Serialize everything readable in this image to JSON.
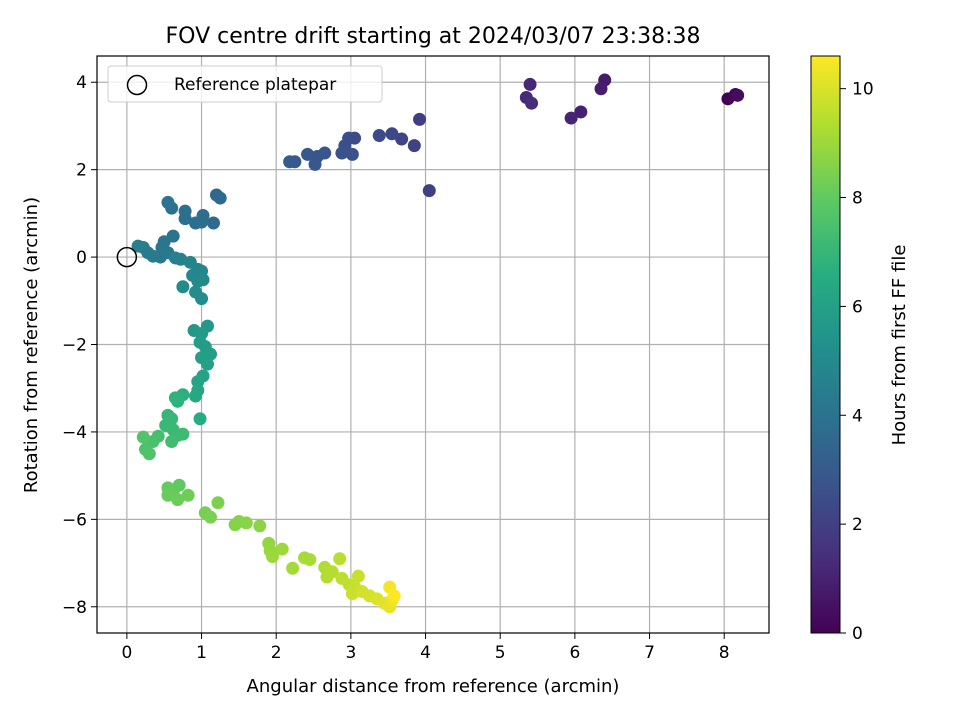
{
  "chart_data": {
    "type": "scatter",
    "title": "FOV centre drift starting at 2024/03/07 23:38:38",
    "xlabel": "Angular distance from reference (arcmin)",
    "ylabel": "Rotation from reference (arcmin)",
    "xlim": [
      -0.4,
      8.6
    ],
    "ylim": [
      -8.6,
      4.6
    ],
    "xticks": [
      0,
      1,
      2,
      3,
      4,
      5,
      6,
      7,
      8
    ],
    "yticks": [
      -8,
      -6,
      -4,
      -2,
      0,
      2,
      4
    ],
    "grid": true,
    "legend": {
      "position": "top-left",
      "entries": [
        {
          "label": "Reference platepar",
          "marker": "open-circle"
        }
      ]
    },
    "reference_point": {
      "x": 0.0,
      "y": 0.0
    },
    "colorbar": {
      "label": "Hours from first FF file",
      "colormap": "viridis",
      "range": [
        0,
        10.6
      ],
      "ticks": [
        0,
        2,
        4,
        6,
        8,
        10
      ]
    },
    "points": [
      {
        "x": 8.05,
        "y": 3.62,
        "c": 0.0
      },
      {
        "x": 8.15,
        "y": 3.72,
        "c": 0.15
      },
      {
        "x": 8.18,
        "y": 3.7,
        "c": 0.3
      },
      {
        "x": 6.4,
        "y": 4.05,
        "c": 0.8
      },
      {
        "x": 6.35,
        "y": 3.85,
        "c": 0.9
      },
      {
        "x": 6.08,
        "y": 3.32,
        "c": 1.0
      },
      {
        "x": 5.95,
        "y": 3.18,
        "c": 1.1
      },
      {
        "x": 5.4,
        "y": 3.95,
        "c": 1.2
      },
      {
        "x": 5.35,
        "y": 3.65,
        "c": 1.3
      },
      {
        "x": 5.42,
        "y": 3.52,
        "c": 1.35
      },
      {
        "x": 3.92,
        "y": 3.15,
        "c": 2.0
      },
      {
        "x": 4.05,
        "y": 1.52,
        "c": 2.05
      },
      {
        "x": 3.85,
        "y": 2.55,
        "c": 2.1
      },
      {
        "x": 3.68,
        "y": 2.7,
        "c": 2.2
      },
      {
        "x": 3.55,
        "y": 2.82,
        "c": 2.3
      },
      {
        "x": 3.38,
        "y": 2.78,
        "c": 2.4
      },
      {
        "x": 3.05,
        "y": 2.72,
        "c": 2.5
      },
      {
        "x": 2.97,
        "y": 2.72,
        "c": 2.55
      },
      {
        "x": 2.92,
        "y": 2.55,
        "c": 2.6
      },
      {
        "x": 3.02,
        "y": 2.35,
        "c": 2.65
      },
      {
        "x": 2.88,
        "y": 2.38,
        "c": 2.7
      },
      {
        "x": 2.65,
        "y": 2.38,
        "c": 2.8
      },
      {
        "x": 2.55,
        "y": 2.3,
        "c": 2.85
      },
      {
        "x": 2.52,
        "y": 2.12,
        "c": 2.9
      },
      {
        "x": 2.42,
        "y": 2.35,
        "c": 2.95
      },
      {
        "x": 2.25,
        "y": 2.18,
        "c": 3.0
      },
      {
        "x": 2.18,
        "y": 2.18,
        "c": 3.05
      },
      {
        "x": 1.2,
        "y": 1.42,
        "c": 3.6
      },
      {
        "x": 1.25,
        "y": 1.35,
        "c": 3.65
      },
      {
        "x": 1.16,
        "y": 0.78,
        "c": 3.7
      },
      {
        "x": 1.02,
        "y": 0.95,
        "c": 3.75
      },
      {
        "x": 1.0,
        "y": 0.8,
        "c": 3.8
      },
      {
        "x": 0.92,
        "y": 0.78,
        "c": 3.85
      },
      {
        "x": 0.78,
        "y": 0.88,
        "c": 3.9
      },
      {
        "x": 0.78,
        "y": 1.05,
        "c": 3.95
      },
      {
        "x": 0.6,
        "y": 1.12,
        "c": 4.0
      },
      {
        "x": 0.55,
        "y": 1.25,
        "c": 4.05
      },
      {
        "x": 0.62,
        "y": 0.48,
        "c": 4.1
      },
      {
        "x": 0.5,
        "y": 0.35,
        "c": 4.15
      },
      {
        "x": 0.47,
        "y": 0.22,
        "c": 4.2
      },
      {
        "x": 0.55,
        "y": 0.1,
        "c": 4.25
      },
      {
        "x": 0.45,
        "y": 0.0,
        "c": 4.3
      },
      {
        "x": 0.35,
        "y": 0.02,
        "c": 4.35
      },
      {
        "x": 0.28,
        "y": 0.1,
        "c": 4.4
      },
      {
        "x": 0.22,
        "y": 0.22,
        "c": 4.45
      },
      {
        "x": 0.15,
        "y": 0.25,
        "c": 4.5
      },
      {
        "x": 0.65,
        "y": -0.02,
        "c": 4.6
      },
      {
        "x": 0.72,
        "y": -0.05,
        "c": 4.65
      },
      {
        "x": 0.85,
        "y": -0.12,
        "c": 4.75
      },
      {
        "x": 0.95,
        "y": -0.28,
        "c": 4.8
      },
      {
        "x": 1.0,
        "y": -0.32,
        "c": 4.85
      },
      {
        "x": 0.88,
        "y": -0.42,
        "c": 4.9
      },
      {
        "x": 0.95,
        "y": -0.55,
        "c": 4.95
      },
      {
        "x": 1.02,
        "y": -0.52,
        "c": 5.0
      },
      {
        "x": 0.75,
        "y": -0.68,
        "c": 5.05
      },
      {
        "x": 0.92,
        "y": -0.8,
        "c": 5.1
      },
      {
        "x": 1.0,
        "y": -0.95,
        "c": 5.15
      },
      {
        "x": 1.08,
        "y": -1.58,
        "c": 5.6
      },
      {
        "x": 0.9,
        "y": -1.68,
        "c": 5.65
      },
      {
        "x": 1.0,
        "y": -1.75,
        "c": 5.7
      },
      {
        "x": 0.98,
        "y": -1.95,
        "c": 5.8
      },
      {
        "x": 1.05,
        "y": -2.05,
        "c": 5.85
      },
      {
        "x": 1.12,
        "y": -2.22,
        "c": 5.9
      },
      {
        "x": 1.0,
        "y": -2.3,
        "c": 5.95
      },
      {
        "x": 1.08,
        "y": -2.45,
        "c": 6.0
      },
      {
        "x": 1.02,
        "y": -2.72,
        "c": 6.1
      },
      {
        "x": 0.95,
        "y": -2.85,
        "c": 6.2
      },
      {
        "x": 0.95,
        "y": -3.05,
        "c": 6.3
      },
      {
        "x": 0.92,
        "y": -3.18,
        "c": 6.4
      },
      {
        "x": 0.98,
        "y": -3.7,
        "c": 6.6
      },
      {
        "x": 0.75,
        "y": -3.15,
        "c": 6.7
      },
      {
        "x": 0.65,
        "y": -3.22,
        "c": 6.8
      },
      {
        "x": 0.68,
        "y": -3.3,
        "c": 6.85
      },
      {
        "x": 0.55,
        "y": -3.62,
        "c": 7.0
      },
      {
        "x": 0.6,
        "y": -3.7,
        "c": 7.05
      },
      {
        "x": 0.52,
        "y": -3.85,
        "c": 7.1
      },
      {
        "x": 0.62,
        "y": -3.95,
        "c": 7.15
      },
      {
        "x": 0.68,
        "y": -4.08,
        "c": 7.2
      },
      {
        "x": 0.75,
        "y": -4.05,
        "c": 7.25
      },
      {
        "x": 0.6,
        "y": -4.22,
        "c": 7.3
      },
      {
        "x": 0.42,
        "y": -4.1,
        "c": 7.4
      },
      {
        "x": 0.35,
        "y": -4.22,
        "c": 7.5
      },
      {
        "x": 0.25,
        "y": -4.4,
        "c": 7.6
      },
      {
        "x": 0.3,
        "y": -4.5,
        "c": 7.65
      },
      {
        "x": 0.22,
        "y": -4.12,
        "c": 7.7
      },
      {
        "x": 0.7,
        "y": -5.22,
        "c": 8.0
      },
      {
        "x": 0.55,
        "y": -5.28,
        "c": 8.05
      },
      {
        "x": 0.62,
        "y": -5.4,
        "c": 8.1
      },
      {
        "x": 0.55,
        "y": -5.45,
        "c": 8.15
      },
      {
        "x": 0.68,
        "y": -5.55,
        "c": 8.2
      },
      {
        "x": 0.82,
        "y": -5.45,
        "c": 8.25
      },
      {
        "x": 1.05,
        "y": -5.85,
        "c": 8.4
      },
      {
        "x": 1.12,
        "y": -5.95,
        "c": 8.45
      },
      {
        "x": 1.22,
        "y": -5.62,
        "c": 8.5
      },
      {
        "x": 1.45,
        "y": -6.12,
        "c": 8.6
      },
      {
        "x": 1.5,
        "y": -6.05,
        "c": 8.65
      },
      {
        "x": 1.6,
        "y": -6.08,
        "c": 8.7
      },
      {
        "x": 1.78,
        "y": -6.15,
        "c": 8.75
      },
      {
        "x": 1.9,
        "y": -6.55,
        "c": 8.9
      },
      {
        "x": 1.92,
        "y": -6.72,
        "c": 8.95
      },
      {
        "x": 1.95,
        "y": -6.85,
        "c": 9.0
      },
      {
        "x": 2.08,
        "y": -6.68,
        "c": 9.05
      },
      {
        "x": 2.22,
        "y": -7.12,
        "c": 9.15
      },
      {
        "x": 2.38,
        "y": -6.88,
        "c": 9.2
      },
      {
        "x": 2.45,
        "y": -6.92,
        "c": 9.25
      },
      {
        "x": 2.65,
        "y": -7.1,
        "c": 9.35
      },
      {
        "x": 2.68,
        "y": -7.32,
        "c": 9.4
      },
      {
        "x": 2.75,
        "y": -7.2,
        "c": 9.45
      },
      {
        "x": 2.85,
        "y": -6.9,
        "c": 9.5
      },
      {
        "x": 2.88,
        "y": -7.35,
        "c": 9.55
      },
      {
        "x": 2.98,
        "y": -7.5,
        "c": 9.6
      },
      {
        "x": 3.05,
        "y": -7.55,
        "c": 9.7
      },
      {
        "x": 3.1,
        "y": -7.3,
        "c": 9.75
      },
      {
        "x": 3.02,
        "y": -7.7,
        "c": 9.8
      },
      {
        "x": 3.15,
        "y": -7.65,
        "c": 9.9
      },
      {
        "x": 3.25,
        "y": -7.75,
        "c": 9.95
      },
      {
        "x": 3.35,
        "y": -7.82,
        "c": 10.05
      },
      {
        "x": 3.45,
        "y": -7.92,
        "c": 10.15
      },
      {
        "x": 3.52,
        "y": -8.0,
        "c": 10.25
      },
      {
        "x": 3.55,
        "y": -7.85,
        "c": 10.35
      },
      {
        "x": 3.52,
        "y": -7.55,
        "c": 10.45
      },
      {
        "x": 3.58,
        "y": -7.75,
        "c": 10.6
      }
    ]
  }
}
